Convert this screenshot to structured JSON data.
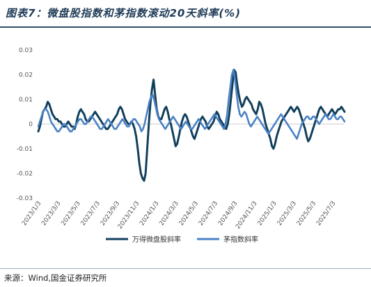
{
  "header": {
    "title": "图表7：微盘股指数和茅指数滚动20天斜率(%)"
  },
  "footer": {
    "source": "来源：Wind,国金证券研究所"
  },
  "colors": {
    "series_dark": "#123f5c",
    "series_light": "#4b82c4",
    "rule": "#2d4d6b"
  },
  "chart_data": {
    "type": "line",
    "x_tick_labels": [
      "2023/1/3",
      "2023/3/3",
      "2023/5/3",
      "2023/7/3",
      "2023/9/3",
      "2023/11/3",
      "2024/1/3",
      "2024/3/3",
      "2024/5/3",
      "2024/7/3",
      "2024/9/3",
      "2024/11/3",
      "2025/1/3",
      "2025/3/3",
      "2025/5/3",
      "2025/7/3"
    ],
    "y_tick_labels": [
      "0.03",
      "0.02",
      "0.01",
      "0",
      "-0.01",
      "-0.02",
      "-0.03"
    ],
    "ylim": [
      -0.03,
      0.03
    ],
    "legend": {
      "position": "bottom",
      "entries": [
        "万得微盘股斜率",
        "茅指数斜率"
      ]
    },
    "series": [
      {
        "name": "万得微盘股斜率",
        "values": [
          -0.003,
          -0.001,
          0.002,
          0.005,
          0.006,
          0.007,
          0.009,
          0.008,
          0.006,
          0.004,
          0.003,
          0.002,
          0.002,
          0.001,
          0.001,
          0.0,
          -0.001,
          -0.001,
          0.0,
          0.001,
          0.0,
          -0.001,
          -0.001,
          -0.002,
          0.0,
          0.003,
          0.005,
          0.006,
          0.005,
          0.004,
          0.002,
          0.001,
          0.001,
          0.002,
          0.003,
          0.004,
          0.005,
          0.004,
          0.003,
          0.002,
          0.001,
          0.0,
          -0.001,
          -0.002,
          -0.002,
          -0.001,
          0.0,
          0.001,
          0.002,
          0.003,
          0.004,
          0.006,
          0.007,
          0.006,
          0.004,
          0.002,
          0.001,
          0.0,
          0.0,
          0.001,
          0.0,
          -0.002,
          -0.005,
          -0.01,
          -0.016,
          -0.02,
          -0.022,
          -0.023,
          -0.02,
          -0.01,
          0.0,
          0.008,
          0.014,
          0.018,
          0.012,
          0.006,
          0.003,
          0.002,
          0.002,
          0.004,
          0.006,
          0.007,
          0.005,
          0.002,
          0.0,
          -0.003,
          -0.006,
          -0.009,
          -0.008,
          -0.005,
          -0.002,
          0.001,
          0.003,
          0.004,
          0.003,
          0.001,
          -0.001,
          -0.003,
          -0.005,
          -0.006,
          -0.004,
          -0.002,
          0.0,
          0.002,
          0.003,
          0.002,
          0.001,
          -0.001,
          -0.002,
          -0.001,
          0.0,
          0.001,
          0.003,
          0.005,
          0.004,
          0.002,
          0.001,
          0.0,
          -0.001,
          -0.002,
          0.0,
          0.004,
          0.01,
          0.016,
          0.022,
          0.021,
          0.016,
          0.012,
          0.009,
          0.007,
          0.008,
          0.01,
          0.011,
          0.01,
          0.009,
          0.008,
          0.006,
          0.005,
          0.004,
          0.006,
          0.009,
          0.008,
          0.006,
          0.003,
          0.0,
          -0.002,
          -0.004,
          -0.006,
          -0.009,
          -0.01,
          -0.008,
          -0.005,
          -0.003,
          -0.001,
          0.001,
          0.002,
          0.003,
          0.004,
          0.005,
          0.006,
          0.007,
          0.006,
          0.005,
          0.006,
          0.007,
          0.006,
          0.004,
          0.002,
          0.0,
          -0.002,
          -0.005,
          -0.007,
          -0.006,
          -0.004,
          -0.002,
          0.0,
          0.002,
          0.004,
          0.006,
          0.007,
          0.006,
          0.005,
          0.004,
          0.003,
          0.004,
          0.005,
          0.006,
          0.005,
          0.004,
          0.005,
          0.006,
          0.006,
          0.007,
          0.006,
          0.005
        ]
      },
      {
        "name": "茅指数斜率",
        "values": [
          -0.001,
          0.001,
          0.003,
          0.005,
          0.006,
          0.006,
          0.005,
          0.003,
          0.001,
          0.0,
          -0.001,
          -0.002,
          -0.003,
          -0.003,
          -0.002,
          -0.001,
          0.0,
          0.0,
          -0.001,
          -0.002,
          -0.003,
          -0.003,
          -0.002,
          -0.001,
          0.0,
          0.001,
          0.002,
          0.002,
          0.001,
          0.0,
          0.0,
          0.001,
          0.002,
          0.003,
          0.003,
          0.002,
          0.001,
          0.0,
          -0.001,
          -0.002,
          -0.002,
          -0.001,
          0.0,
          0.001,
          0.002,
          0.001,
          0.0,
          -0.001,
          -0.002,
          -0.002,
          -0.001,
          0.0,
          0.001,
          0.002,
          0.001,
          0.0,
          -0.001,
          -0.001,
          0.0,
          0.001,
          0.002,
          0.002,
          0.001,
          0.0,
          -0.001,
          -0.003,
          -0.002,
          0.0,
          0.003,
          0.006,
          0.009,
          0.011,
          0.012,
          0.01,
          0.007,
          0.004,
          0.002,
          0.001,
          0.0,
          -0.001,
          -0.002,
          -0.001,
          0.0,
          0.001,
          0.002,
          0.003,
          0.002,
          0.001,
          0.0,
          -0.001,
          -0.002,
          -0.001,
          0.0,
          0.001,
          0.0,
          -0.001,
          -0.002,
          -0.002,
          -0.001,
          0.0,
          0.001,
          0.002,
          0.001,
          0.0,
          -0.001,
          -0.002,
          -0.001,
          0.0,
          0.001,
          0.002,
          0.003,
          0.004,
          0.003,
          0.002,
          0.001,
          0.0,
          -0.001,
          -0.002,
          0.0,
          0.004,
          0.01,
          0.015,
          0.02,
          0.022,
          0.018,
          0.012,
          0.007,
          0.004,
          0.003,
          0.004,
          0.005,
          0.004,
          0.002,
          0.0,
          -0.001,
          0.0,
          0.001,
          0.002,
          0.003,
          0.002,
          0.001,
          0.0,
          -0.001,
          -0.002,
          -0.003,
          -0.004,
          -0.003,
          -0.002,
          -0.001,
          0.0,
          0.001,
          0.002,
          0.003,
          0.004,
          0.003,
          0.002,
          0.001,
          0.0,
          -0.001,
          -0.002,
          -0.003,
          -0.004,
          -0.005,
          -0.006,
          -0.004,
          -0.002,
          0.0,
          0.001,
          0.002,
          0.003,
          0.003,
          0.002,
          0.002,
          0.003,
          0.003,
          0.002,
          0.001,
          0.0,
          0.001,
          0.002,
          0.003,
          0.004,
          0.003,
          0.002,
          0.002,
          0.003,
          0.004,
          0.003,
          0.002,
          0.002,
          0.003,
          0.003,
          0.002,
          0.001
        ]
      }
    ]
  }
}
